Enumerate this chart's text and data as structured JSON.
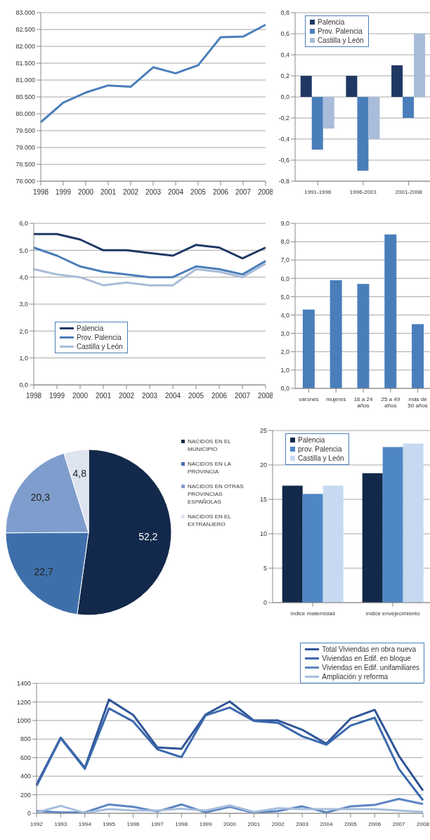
{
  "chart_data": [
    {
      "type": "line",
      "categories": [
        "1998",
        "1999",
        "2000",
        "2001",
        "2002",
        "2003",
        "2004",
        "2005",
        "2006",
        "2007",
        "2008"
      ],
      "series": [
        {
          "color": "#4a7ebb",
          "values": [
            79750,
            80330,
            80630,
            80840,
            80800,
            81380,
            81200,
            81440,
            82270,
            82290,
            82640
          ]
        }
      ],
      "ylim": [
        78000,
        83000
      ],
      "yticks": [
        {
          "value": 78000,
          "label": "78.000"
        },
        {
          "value": 78500,
          "label": "78.500"
        },
        {
          "value": 79000,
          "label": "79.000"
        },
        {
          "value": 79500,
          "label": "79.500"
        },
        {
          "value": 80000,
          "label": "80.000"
        },
        {
          "value": 80500,
          "label": "80.500"
        },
        {
          "value": 81000,
          "label": "81.000"
        },
        {
          "value": 81500,
          "label": "81.500"
        },
        {
          "value": 82000,
          "label": "82.000"
        },
        {
          "value": 82500,
          "label": "82.500"
        },
        {
          "value": 83000,
          "label": "83.000"
        }
      ],
      "grid": "y",
      "legend": false
    },
    {
      "type": "bar",
      "categories": [
        "1991-1996",
        "1996-2001",
        "2001-2008"
      ],
      "series": [
        {
          "name": "Palencia",
          "color": "#1f3864",
          "values": [
            0.2,
            0.2,
            0.3
          ]
        },
        {
          "name": "Prov. Palencia",
          "color": "#4a7ebb",
          "values": [
            -0.5,
            -0.7,
            -0.2
          ]
        },
        {
          "name": "Castilla y León",
          "color": "#a9bcd9",
          "values": [
            -0.3,
            -0.4,
            0.6
          ]
        }
      ],
      "ylim": [
        -0.8,
        0.8
      ],
      "yticks": [
        {
          "value": -0.8,
          "label": "-0,8"
        },
        {
          "value": -0.6,
          "label": "-0,6"
        },
        {
          "value": -0.4,
          "label": "-0,4"
        },
        {
          "value": -0.2,
          "label": "-0,2"
        },
        {
          "value": 0,
          "label": "0,0"
        },
        {
          "value": 0.2,
          "label": "0,2"
        },
        {
          "value": 0.4,
          "label": "0,4"
        },
        {
          "value": 0.6,
          "label": "0,6"
        },
        {
          "value": 0.8,
          "label": "0,8"
        }
      ],
      "grid": "y",
      "legend": "top left"
    },
    {
      "type": "line",
      "categories": [
        "1998",
        "1999",
        "2000",
        "2001",
        "2002",
        "2003",
        "2004",
        "2005",
        "2006",
        "2007",
        "2008"
      ],
      "series": [
        {
          "name": "Palencia",
          "color": "#1f3864",
          "values": [
            5.6,
            5.6,
            5.4,
            5.0,
            5.0,
            4.9,
            4.8,
            5.2,
            5.1,
            4.7,
            5.1
          ]
        },
        {
          "name": "Prov. Palencia",
          "color": "#4a7ebb",
          "values": [
            5.1,
            4.8,
            4.4,
            4.2,
            4.1,
            4.0,
            4.0,
            4.4,
            4.3,
            4.1,
            4.6
          ]
        },
        {
          "name": "Castilla y León",
          "color": "#a9bcd9",
          "values": [
            4.3,
            4.1,
            4.0,
            3.7,
            3.8,
            3.7,
            3.7,
            4.3,
            4.2,
            4.0,
            4.5
          ]
        }
      ],
      "ylim": [
        0,
        6
      ],
      "yticks": [
        {
          "value": 0,
          "label": "0,0"
        },
        {
          "value": 1,
          "label": "1,0"
        },
        {
          "value": 2,
          "label": "2,0"
        },
        {
          "value": 3,
          "label": "3,0"
        },
        {
          "value": 4,
          "label": "4,0"
        },
        {
          "value": 5,
          "label": "5,0"
        },
        {
          "value": 6,
          "label": "6,0"
        }
      ],
      "grid": "y",
      "legend": "left"
    },
    {
      "type": "bar",
      "categories": [
        "varones",
        "mujeres",
        "16 a 24 años",
        "25 a 49 años",
        "más de 50 años"
      ],
      "series": [
        {
          "color": "#4a7ebb",
          "values": [
            4.3,
            5.9,
            5.7,
            8.4,
            3.5
          ]
        }
      ],
      "ylim": [
        0,
        9
      ],
      "yticks": [
        {
          "value": 0,
          "label": "0,0"
        },
        {
          "value": 1,
          "label": "1,0"
        },
        {
          "value": 2,
          "label": "2,0"
        },
        {
          "value": 3,
          "label": "3,0"
        },
        {
          "value": 4,
          "label": "4,0"
        },
        {
          "value": 5,
          "label": "5,0"
        },
        {
          "value": 6,
          "label": "6,0"
        },
        {
          "value": 7,
          "label": "7,0"
        },
        {
          "value": 8,
          "label": "8,0"
        },
        {
          "value": 9,
          "label": "9,0"
        }
      ],
      "grid": "y",
      "legend": false
    },
    {
      "type": "pie",
      "categories": [
        "NACIDOS EN EL MUNICIPIO",
        "NACIDOS EN LA PROVINCIA",
        "NACIDOS EN OTRAS PROVINCIAS ESPAÑOLAS",
        "NACIDOS EN EL EXTRANJERO"
      ],
      "values": [
        52.2,
        22.7,
        20.3,
        4.8
      ],
      "value_labels": [
        "52,2",
        "22,7",
        "20,3",
        "4,8"
      ],
      "colors": [
        "#13294b",
        "#3f6faa",
        "#7f9dcc",
        "#dde4f0"
      ],
      "legend": "right"
    },
    {
      "type": "bar",
      "categories": [
        "índice maternidad",
        "índice envejecimiento"
      ],
      "series": [
        {
          "name": "Palencia",
          "color": "#13294b",
          "values": [
            17,
            18.8
          ]
        },
        {
          "name": "prov. Palencia",
          "color": "#4f86c6",
          "values": [
            15.8,
            22.6
          ]
        },
        {
          "name": "Castilla y León",
          "color": "#c6d9f1",
          "values": [
            17,
            23.1
          ]
        }
      ],
      "ylim": [
        0,
        25
      ],
      "yticks": [
        0,
        5,
        10,
        15,
        20,
        25
      ],
      "grid": "y",
      "legend": "top left"
    },
    {
      "type": "line",
      "categories": [
        "1992",
        "1993",
        "1994",
        "1995",
        "1996",
        "1997",
        "1998",
        "1999",
        "2000",
        "2001",
        "2002",
        "2003",
        "2004",
        "2005",
        "2006",
        "2007",
        "2008"
      ],
      "series": [
        {
          "name": "Total Viviendas en obra nueva",
          "color": "#2e5597",
          "values": [
            310,
            815,
            490,
            1225,
            1060,
            710,
            695,
            1065,
            1205,
            1000,
            1000,
            900,
            750,
            1020,
            1115,
            620,
            245
          ]
        },
        {
          "name": "Viviendas en Edif. en bloque",
          "color": "#3b68ad",
          "values": [
            295,
            810,
            480,
            1130,
            990,
            690,
            605,
            1055,
            1140,
            995,
            975,
            830,
            740,
            945,
            1030,
            480,
            140
          ]
        },
        {
          "name": "Viviendas en Edif. unifamiliares",
          "color": "#5a85c2",
          "values": [
            25,
            10,
            10,
            95,
            70,
            20,
            95,
            10,
            70,
            5,
            25,
            75,
            10,
            75,
            90,
            155,
            100
          ]
        },
        {
          "name": "Ampliación y reforma",
          "color": "#a6bddb",
          "values": [
            10,
            80,
            5,
            45,
            30,
            30,
            50,
            30,
            85,
            15,
            55,
            45,
            45,
            45,
            45,
            30,
            15
          ]
        }
      ],
      "ylim": [
        0,
        1400
      ],
      "yticks": [
        0,
        200,
        400,
        600,
        800,
        1000,
        1200,
        1400
      ],
      "grid": "y",
      "legend": "top right"
    }
  ]
}
